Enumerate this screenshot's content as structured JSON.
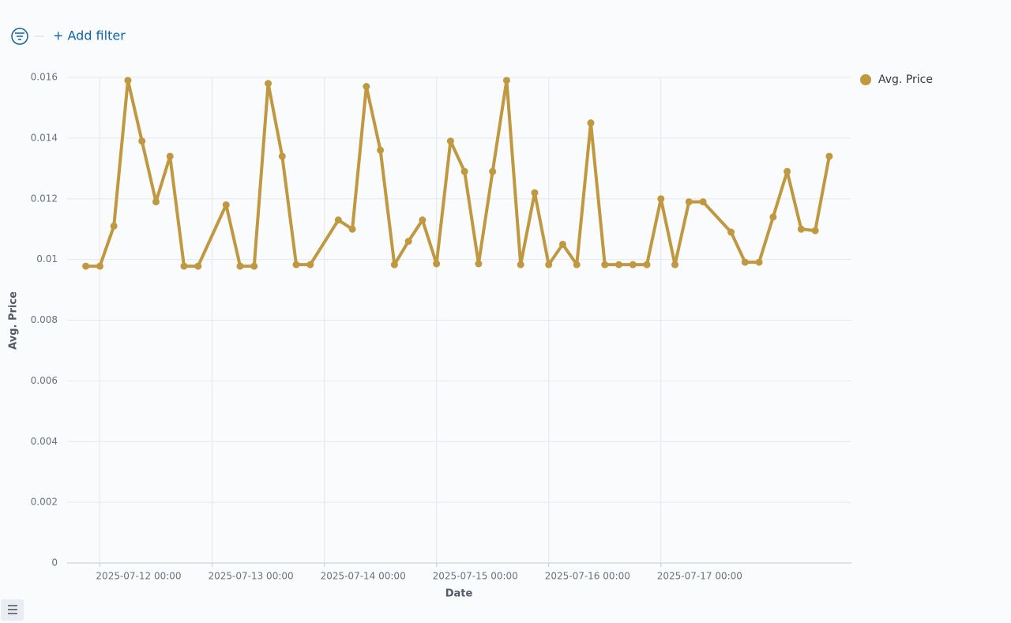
{
  "filter_bar": {
    "add_filter": "+ Add filter"
  },
  "chart_data": {
    "type": "line",
    "x_label": "Date",
    "y_label": "Avg. Price",
    "x": [
      "2025-07-11 21:00",
      "2025-07-12 00:00",
      "2025-07-12 03:00",
      "2025-07-12 06:00",
      "2025-07-12 09:00",
      "2025-07-12 12:00",
      "2025-07-12 15:00",
      "2025-07-12 18:00",
      "2025-07-12 21:00",
      "2025-07-13 03:00",
      "2025-07-13 06:00",
      "2025-07-13 09:00",
      "2025-07-13 12:00",
      "2025-07-13 15:00",
      "2025-07-13 18:00",
      "2025-07-13 21:00",
      "2025-07-14 03:00",
      "2025-07-14 06:00",
      "2025-07-14 09:00",
      "2025-07-14 12:00",
      "2025-07-14 15:00",
      "2025-07-14 18:00",
      "2025-07-14 21:00",
      "2025-07-15 00:00",
      "2025-07-15 03:00",
      "2025-07-15 06:00",
      "2025-07-15 09:00",
      "2025-07-15 12:00",
      "2025-07-15 15:00",
      "2025-07-15 18:00",
      "2025-07-15 21:00",
      "2025-07-16 00:00",
      "2025-07-16 03:00",
      "2025-07-16 06:00",
      "2025-07-16 09:00",
      "2025-07-16 12:00",
      "2025-07-16 15:00",
      "2025-07-16 18:00",
      "2025-07-16 21:00",
      "2025-07-17 00:00",
      "2025-07-17 03:00",
      "2025-07-17 06:00",
      "2025-07-17 09:00",
      "2025-07-17 15:00",
      "2025-07-17 18:00",
      "2025-07-17 21:00",
      "2025-07-18 00:00",
      "2025-07-18 03:00",
      "2025-07-18 06:00",
      "2025-07-18 09:00",
      "2025-07-18 12:00"
    ],
    "series": [
      {
        "name": "Avg. Price",
        "color": "#c0983f",
        "values": [
          0.00978,
          0.00978,
          0.0111,
          0.0159,
          0.0139,
          0.0119,
          0.0134,
          0.00978,
          0.00978,
          0.0118,
          0.00978,
          0.00978,
          0.0158,
          0.0134,
          0.00983,
          0.00983,
          0.0113,
          0.011,
          0.0157,
          0.0136,
          0.00983,
          0.0106,
          0.0113,
          0.00986,
          0.0139,
          0.0129,
          0.00986,
          0.0129,
          0.0159,
          0.00983,
          0.0122,
          0.00983,
          0.0105,
          0.00983,
          0.0145,
          0.00983,
          0.00983,
          0.00983,
          0.00983,
          0.012,
          0.00983,
          0.0119,
          0.0119,
          0.0109,
          0.00991,
          0.00991,
          0.0114,
          0.0129,
          0.011,
          0.01095,
          0.0134
        ]
      }
    ],
    "xlim": [
      "2025-07-11 17:00",
      "2025-07-18 16:45"
    ],
    "xticks": [
      "2025-07-12 00:00",
      "2025-07-13 00:00",
      "2025-07-14 00:00",
      "2025-07-15 00:00",
      "2025-07-16 00:00",
      "2025-07-17 00:00"
    ],
    "ylim": [
      0,
      0.016
    ],
    "yticks": [
      0,
      0.002,
      0.004,
      0.006,
      0.008,
      0.01,
      0.012,
      0.014,
      0.016
    ],
    "grid": true,
    "legend": "right"
  }
}
